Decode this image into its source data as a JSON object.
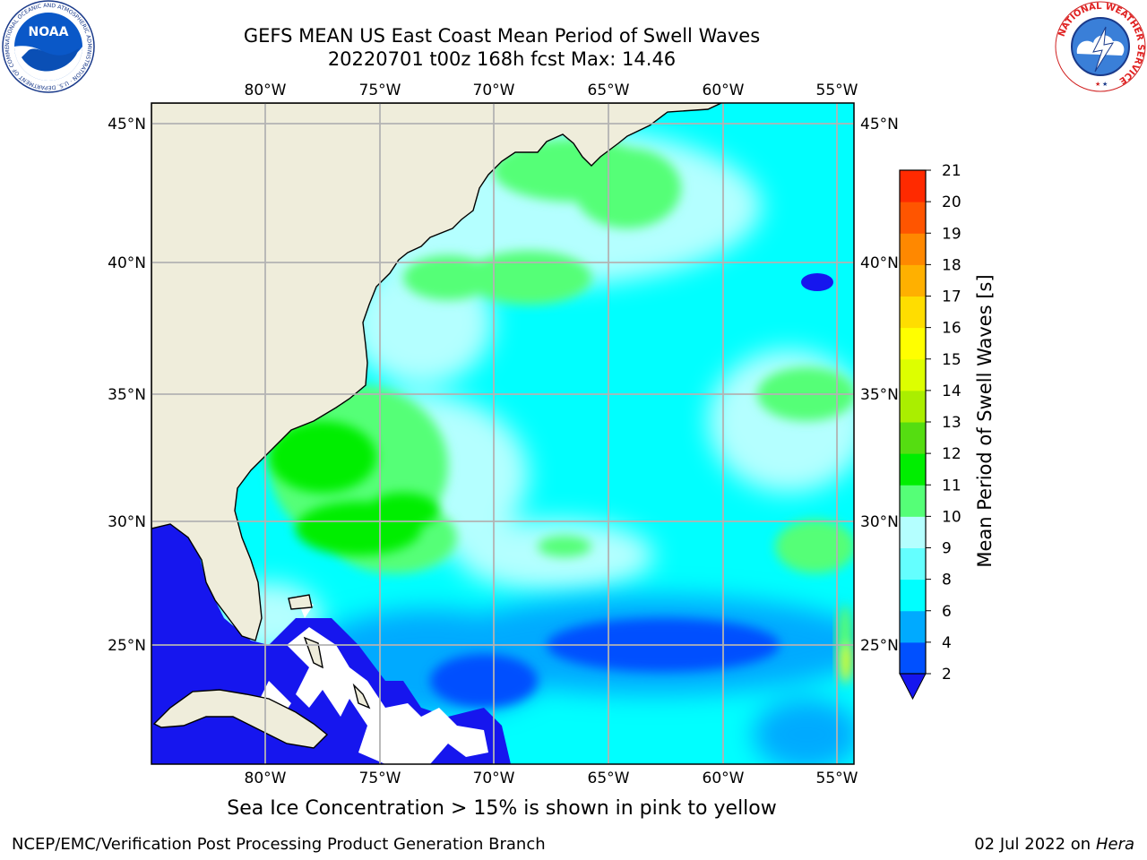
{
  "title_line1": "GEFS MEAN US East Coast Mean Period of Swell Waves",
  "title_line2": "20220701 t00z 168h fcst   Max: 14.46",
  "map": {
    "lon_labels": [
      "80°W",
      "75°W",
      "70°W",
      "65°W",
      "60°W",
      "55°W"
    ],
    "lat_labels": [
      "45°N",
      "40°N",
      "35°N",
      "30°N",
      "25°N"
    ],
    "lon_values": [
      -80,
      -75,
      -70,
      -65,
      -60,
      -55
    ],
    "lat_values": [
      45,
      40,
      35,
      30,
      25
    ],
    "lon_range": [
      -85,
      -54.3
    ],
    "lat_range": [
      20.5,
      45.8
    ],
    "land_color": "#efeddb",
    "grid_color": "#b3b3b3"
  },
  "colorbar": {
    "label": "Mean Period of Swell Waves [s]",
    "tick_labels": [
      "2",
      "4",
      "6",
      "8",
      "9",
      "10",
      "11",
      "12",
      "13",
      "14",
      "15",
      "16",
      "17",
      "18",
      "19",
      "20",
      "21"
    ],
    "levels": [
      2,
      4,
      6,
      8,
      9,
      10,
      11,
      12,
      13,
      14,
      15,
      16,
      17,
      18,
      19,
      20,
      21
    ],
    "colors": [
      "#0050ff",
      "#00aaff",
      "#00ffff",
      "#64ffff",
      "#b4ffff",
      "#55ff77",
      "#00ee00",
      "#55dd11",
      "#aaee00",
      "#ddff00",
      "#ffff00",
      "#ffdd00",
      "#ffb000",
      "#ff8800",
      "#ff5500",
      "#ff2a00",
      "#ff0000"
    ],
    "under_color": "#1616ee"
  },
  "ice_note": "Sea Ice Concentration > 15% is shown in pink to yellow",
  "credit": "NCEP/EMC/Verification Post Processing Product Generation Branch",
  "date_text": "02 Jul 2022 on ",
  "machine": "Hera",
  "logos": {
    "noaa_text": "NOAA",
    "noaa_ring_text": "NATIONAL OCEANIC AND ATMOSPHERIC ADMINISTRATION · U.S. DEPARTMENT OF COMMERCE",
    "nws_ring_text": "NATIONAL WEATHER SERVICE"
  }
}
